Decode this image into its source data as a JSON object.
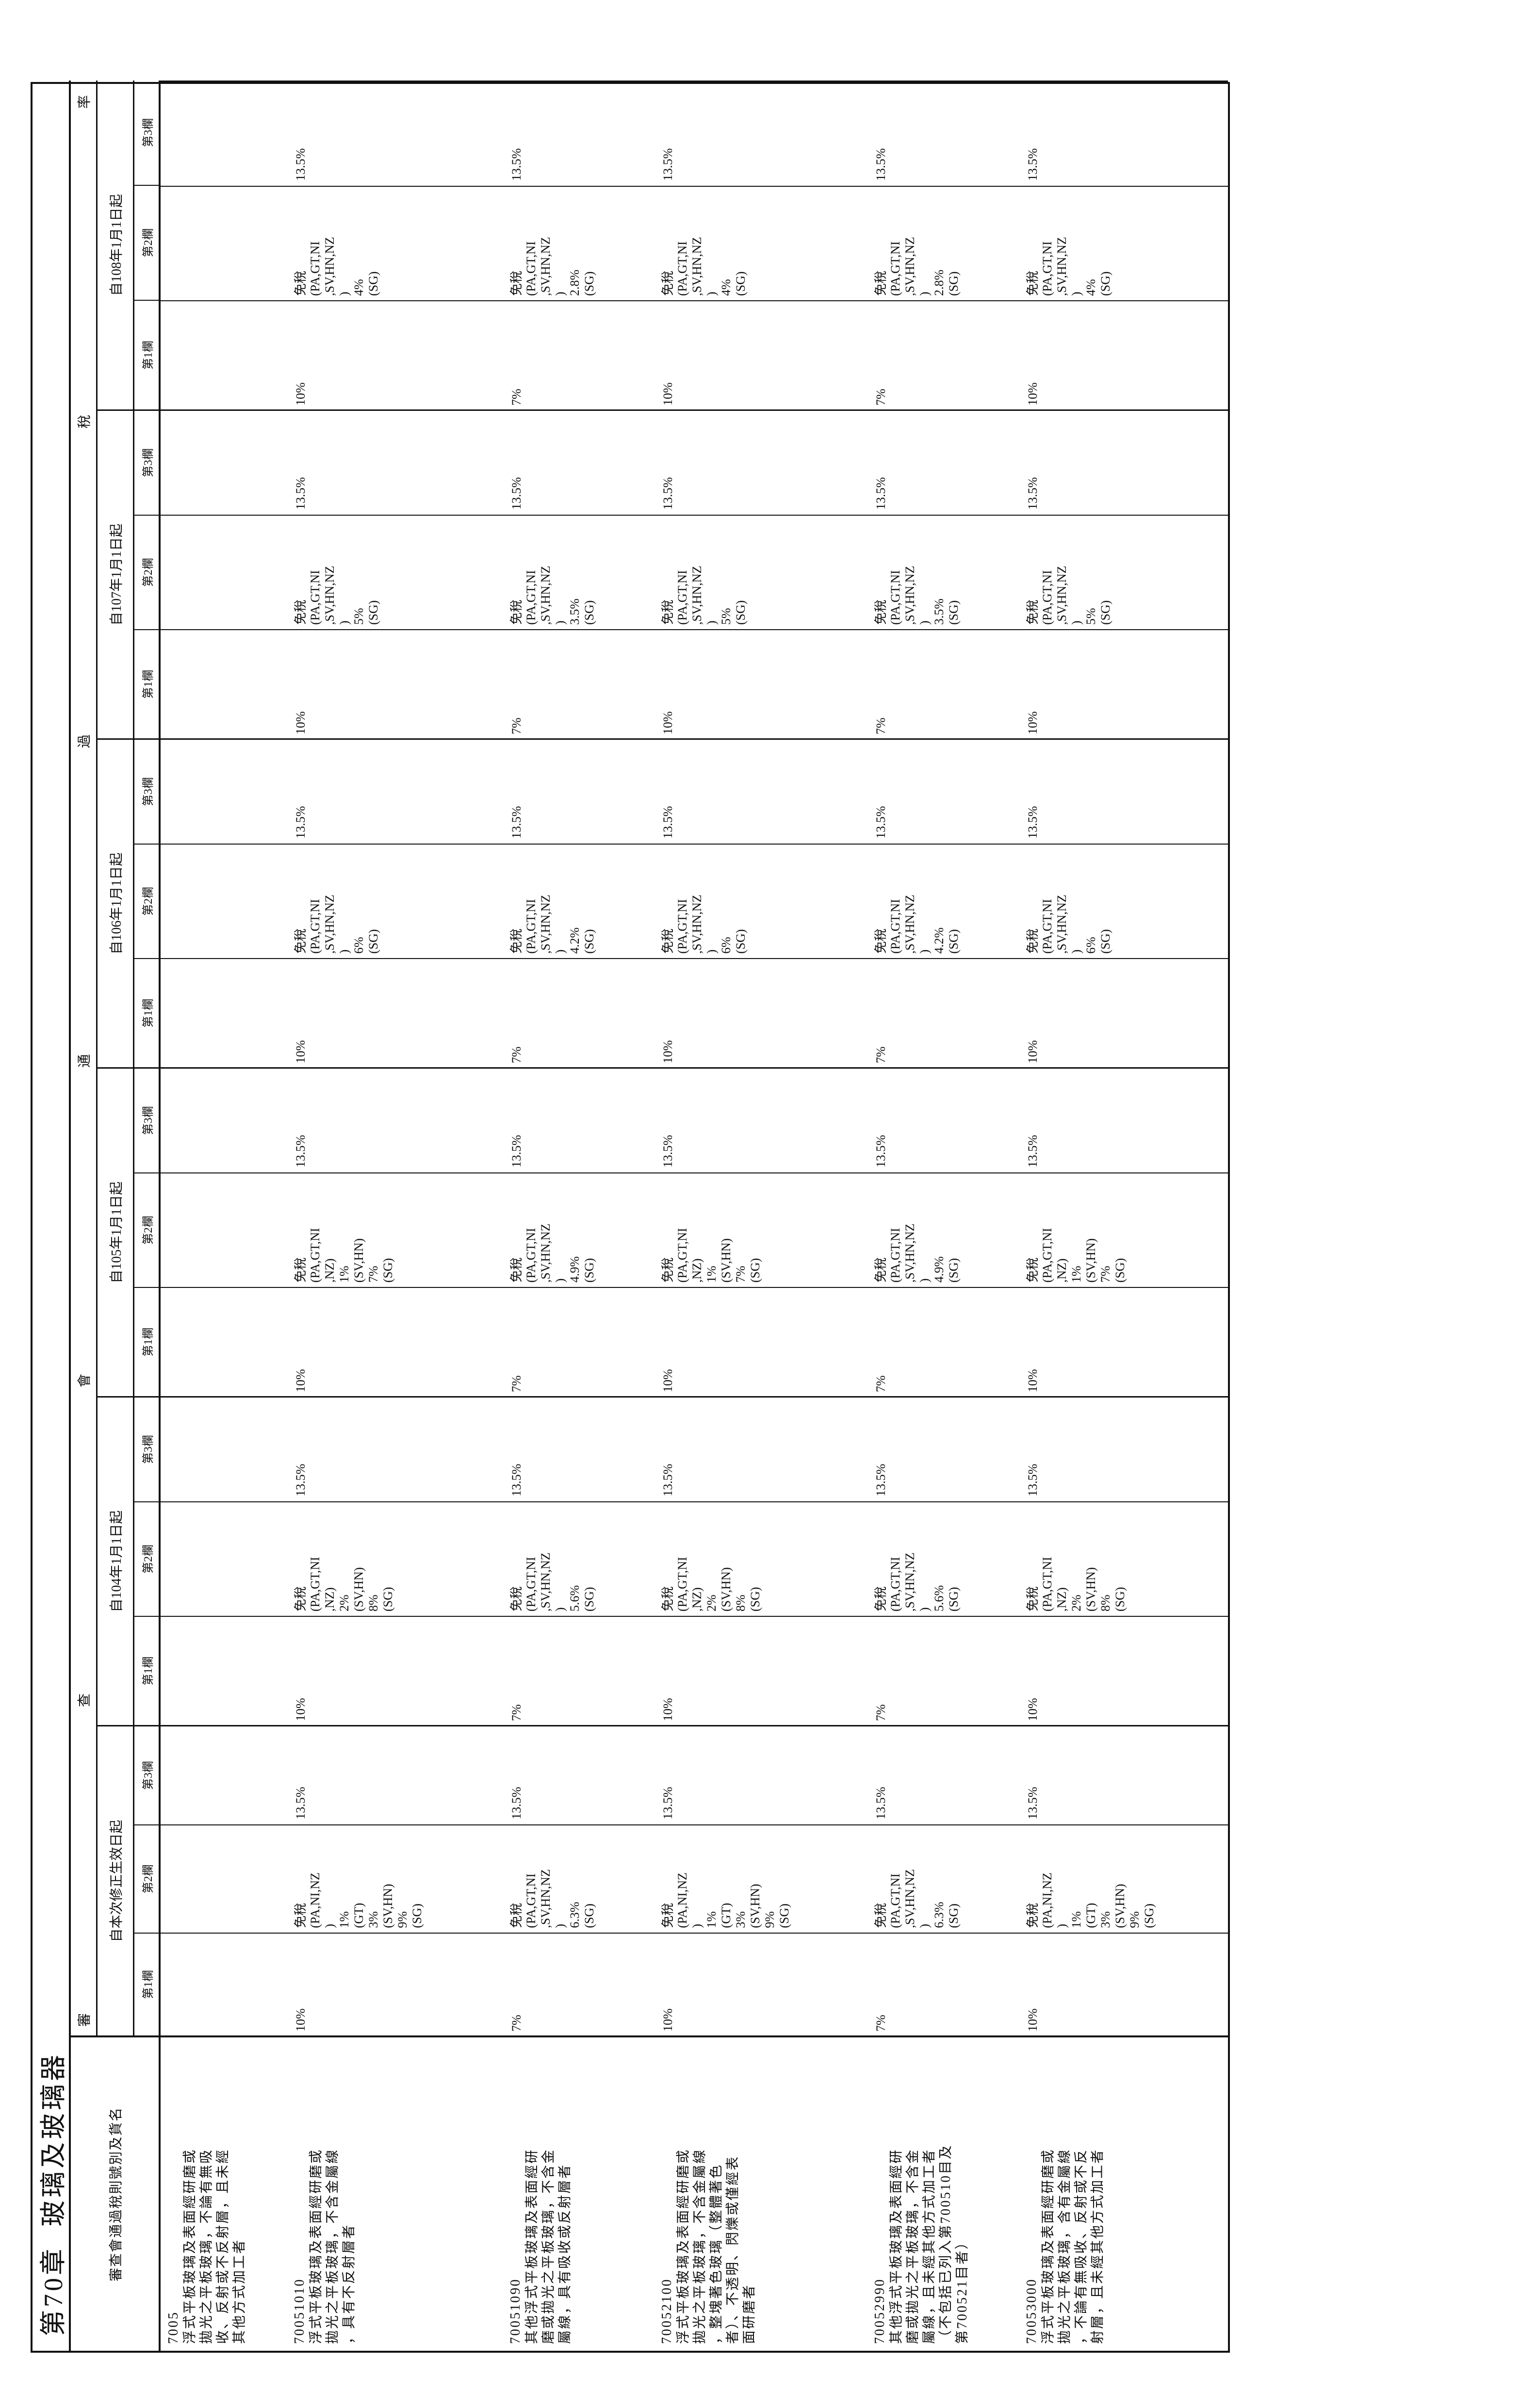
{
  "title": {
    "chapter": "第70章",
    "name": "玻璃及玻璃器"
  },
  "header": {
    "desc_label": "審查會通過稅則號別及貨名",
    "banner_chars": [
      "審",
      "查",
      "會",
      "通",
      "過",
      "稅",
      "率"
    ],
    "groups": [
      "自本次修正生效日起",
      "自104年1月1日起",
      "自105年1月1日起",
      "自106年1月1日起",
      "自107年1月1日起",
      "自108年1月1日起"
    ],
    "cols": [
      "第1欄",
      "第2欄",
      "第3欄"
    ]
  },
  "rows": [
    {
      "desc": [
        "7005",
        "浮式平板玻璃及表面經研磨或",
        "拋光之平板玻璃，不論有無吸",
        "收、反射或不反射層，且未經",
        "其他方式加工者"
      ],
      "groups": []
    },
    {
      "desc": [
        "70051010",
        "浮式平板玻璃及表面經研磨或",
        "拋光之平板玻璃，不含金屬線",
        "，具有不反射層者"
      ],
      "groups": [
        {
          "c1": "10%",
          "c2": [
            "免稅",
            "(PA,NI,NZ",
            ")",
            "1%",
            "(GT)",
            "3%",
            "(SV,HN)",
            "9%",
            "(SG)"
          ],
          "c3": "13.5%"
        },
        {
          "c1": "10%",
          "c2": [
            "免稅",
            "(PA,GT,NI",
            ",NZ)",
            "2%",
            "(SV,HN)",
            "8%",
            "(SG)"
          ],
          "c3": "13.5%"
        },
        {
          "c1": "10%",
          "c2": [
            "免稅",
            "(PA,GT,NI",
            ",NZ)",
            "1%",
            "(SV,HN)",
            "7%",
            "(SG)"
          ],
          "c3": "13.5%"
        },
        {
          "c1": "10%",
          "c2": [
            "免稅",
            "(PA,GT,NI",
            ",SV,HN,NZ",
            ")",
            "6%",
            "(SG)"
          ],
          "c3": "13.5%"
        },
        {
          "c1": "10%",
          "c2": [
            "免稅",
            "(PA,GT,NI",
            ",SV,HN,NZ",
            ")",
            "5%",
            "(SG)"
          ],
          "c3": "13.5%"
        },
        {
          "c1": "10%",
          "c2": [
            "免稅",
            "(PA,GT,NI",
            ",SV,HN,NZ",
            ")",
            "4%",
            "(SG)"
          ],
          "c3": "13.5%"
        }
      ]
    },
    {
      "desc": [
        "70051090",
        "其他浮式平板玻璃及表面經研",
        "磨或拋光之平板玻璃，不含金",
        "屬線，具有吸收或反射層者"
      ],
      "groups": [
        {
          "c1": "7%",
          "c2": [
            "免稅",
            "(PA,GT,NI",
            ",SV,HN,NZ",
            ")",
            "6.3%",
            "(SG)"
          ],
          "c3": "13.5%"
        },
        {
          "c1": "7%",
          "c2": [
            "免稅",
            "(PA,GT,NI",
            ",SV,HN,NZ",
            ")",
            "5.6%",
            "(SG)"
          ],
          "c3": "13.5%"
        },
        {
          "c1": "7%",
          "c2": [
            "免稅",
            "(PA,GT,NI",
            ",SV,HN,NZ",
            ")",
            "4.9%",
            "(SG)"
          ],
          "c3": "13.5%"
        },
        {
          "c1": "7%",
          "c2": [
            "免稅",
            "(PA,GT,NI",
            ",SV,HN,NZ",
            ")",
            "4.2%",
            "(SG)"
          ],
          "c3": "13.5%"
        },
        {
          "c1": "7%",
          "c2": [
            "免稅",
            "(PA,GT,NI",
            ",SV,HN,NZ",
            ")",
            "3.5%",
            "(SG)"
          ],
          "c3": "13.5%"
        },
        {
          "c1": "7%",
          "c2": [
            "免稅",
            "(PA,GT,NI",
            ",SV,HN,NZ",
            ")",
            "2.8%",
            "(SG)"
          ],
          "c3": "13.5%"
        }
      ]
    },
    {
      "desc": [
        "70052100",
        "浮式平板玻璃及表面經研磨或",
        "拋光之平板玻璃，不含金屬線",
        "，整塊著色玻璃（整體著色",
        "者）、不透明、閃爍或僅經表",
        "面研磨者"
      ],
      "groups": [
        {
          "c1": "10%",
          "c2": [
            "免稅",
            "(PA,NI,NZ",
            ")",
            "1%",
            "(GT)",
            "3%",
            "(SV,HN)",
            "9%",
            "(SG)"
          ],
          "c3": "13.5%"
        },
        {
          "c1": "10%",
          "c2": [
            "免稅",
            "(PA,GT,NI",
            ",NZ)",
            "2%",
            "(SV,HN)",
            "8%",
            "(SG)"
          ],
          "c3": "13.5%"
        },
        {
          "c1": "10%",
          "c2": [
            "免稅",
            "(PA,GT,NI",
            ",NZ)",
            "1%",
            "(SV,HN)",
            "7%",
            "(SG)"
          ],
          "c3": "13.5%"
        },
        {
          "c1": "10%",
          "c2": [
            "免稅",
            "(PA,GT,NI",
            ",SV,HN,NZ",
            ")",
            "6%",
            "(SG)"
          ],
          "c3": "13.5%"
        },
        {
          "c1": "10%",
          "c2": [
            "免稅",
            "(PA,GT,NI",
            ",SV,HN,NZ",
            ")",
            "5%",
            "(SG)"
          ],
          "c3": "13.5%"
        },
        {
          "c1": "10%",
          "c2": [
            "免稅",
            "(PA,GT,NI",
            ",SV,HN,NZ",
            ")",
            "4%",
            "(SG)"
          ],
          "c3": "13.5%"
        }
      ]
    },
    {
      "desc": [
        "70052990",
        "其他浮式平板玻璃及表面經研",
        "磨或拋光之平板玻璃，不含金",
        "屬線，且未經其他方式加工者",
        "（不包括已列入第700510目及",
        "第700521目者）"
      ],
      "groups": [
        {
          "c1": "7%",
          "c2": [
            "免稅",
            "(PA,GT,NI",
            ",SV,HN,NZ",
            ")",
            "6.3%",
            "(SG)"
          ],
          "c3": "13.5%"
        },
        {
          "c1": "7%",
          "c2": [
            "免稅",
            "(PA,GT,NI",
            ",SV,HN,NZ",
            ")",
            "5.6%",
            "(SG)"
          ],
          "c3": "13.5%"
        },
        {
          "c1": "7%",
          "c2": [
            "免稅",
            "(PA,GT,NI",
            ",SV,HN,NZ",
            ")",
            "4.9%",
            "(SG)"
          ],
          "c3": "13.5%"
        },
        {
          "c1": "7%",
          "c2": [
            "免稅",
            "(PA,GT,NI",
            ",SV,HN,NZ",
            ")",
            "4.2%",
            "(SG)"
          ],
          "c3": "13.5%"
        },
        {
          "c1": "7%",
          "c2": [
            "免稅",
            "(PA,GT,NI",
            ",SV,HN,NZ",
            ")",
            "3.5%",
            "(SG)"
          ],
          "c3": "13.5%"
        },
        {
          "c1": "7%",
          "c2": [
            "免稅",
            "(PA,GT,NI",
            ",SV,HN,NZ",
            ")",
            "2.8%",
            "(SG)"
          ],
          "c3": "13.5%"
        }
      ]
    },
    {
      "desc": [
        "70053000",
        "浮式平板玻璃及表面經研磨或",
        "拋光之平板玻璃，含有金屬線",
        "，不論有無吸收、反射或不反",
        "射層，且未經其他方式加工者"
      ],
      "groups": [
        {
          "c1": "10%",
          "c2": [
            "免稅",
            "(PA,NI,NZ",
            ")",
            "1%",
            "(GT)",
            "3%",
            "(SV,HN)",
            "9%",
            "(SG)"
          ],
          "c3": "13.5%"
        },
        {
          "c1": "10%",
          "c2": [
            "免稅",
            "(PA,GT,NI",
            ",NZ)",
            "2%",
            "(SV,HN)",
            "8%",
            "(SG)"
          ],
          "c3": "13.5%"
        },
        {
          "c1": "10%",
          "c2": [
            "免稅",
            "(PA,GT,NI",
            ",NZ)",
            "1%",
            "(SV,HN)",
            "7%",
            "(SG)"
          ],
          "c3": "13.5%"
        },
        {
          "c1": "10%",
          "c2": [
            "免稅",
            "(PA,GT,NI",
            ",SV,HN,NZ",
            ")",
            "6%",
            "(SG)"
          ],
          "c3": "13.5%"
        },
        {
          "c1": "10%",
          "c2": [
            "免稅",
            "(PA,GT,NI",
            ",SV,HN,NZ",
            ")",
            "5%",
            "(SG)"
          ],
          "c3": "13.5%"
        },
        {
          "c1": "10%",
          "c2": [
            "免稅",
            "(PA,GT,NI",
            ",SV,HN,NZ",
            ")",
            "4%",
            "(SG)"
          ],
          "c3": "13.5%"
        }
      ]
    }
  ]
}
